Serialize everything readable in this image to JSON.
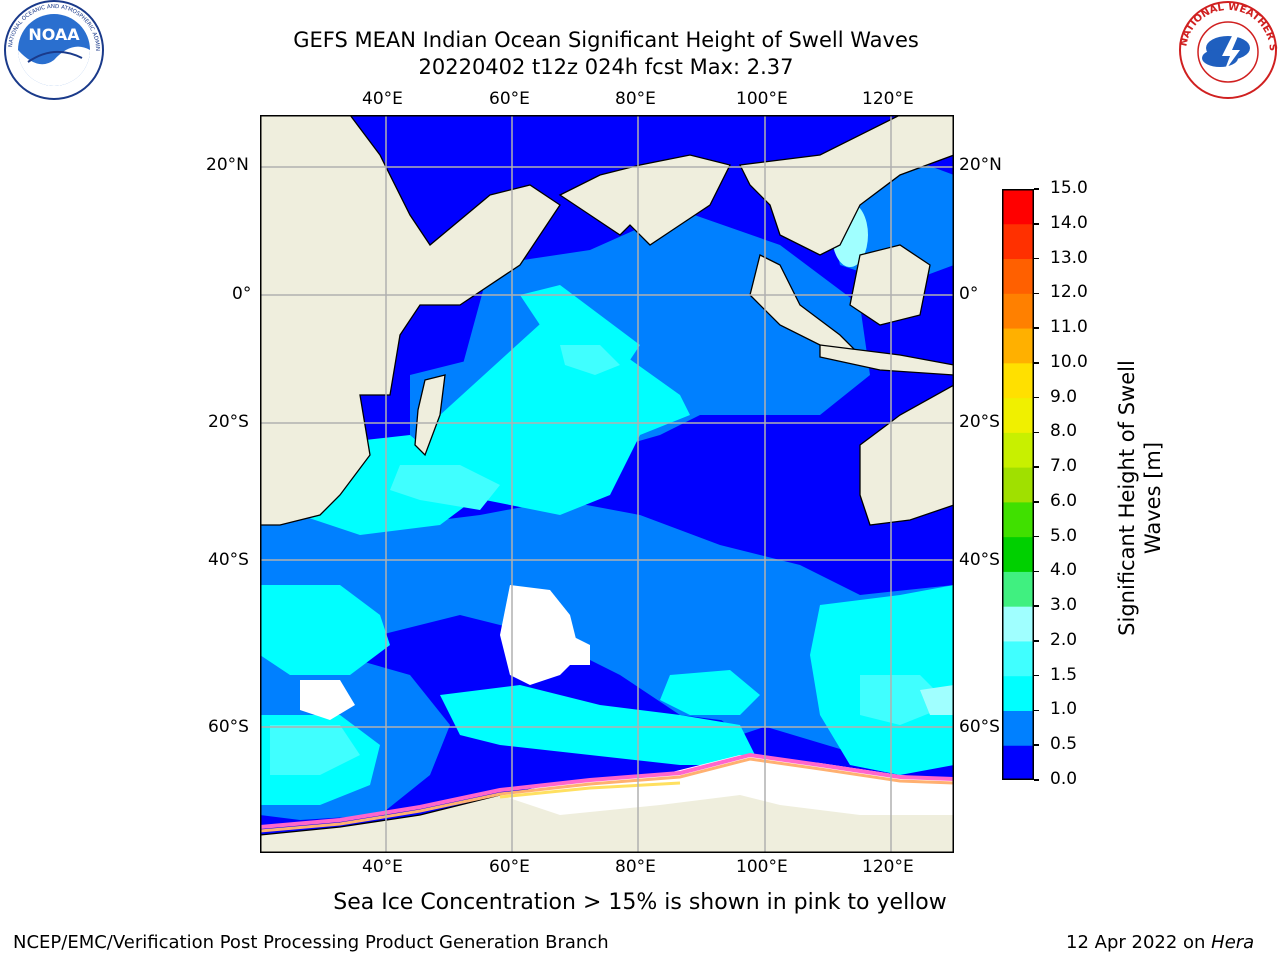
{
  "header": {
    "title_line1": "GEFS MEAN Indian Ocean Significant Height of Swell Waves",
    "title_line2": "20220402 t12z 024h fcst   Max: 2.37"
  },
  "logos": {
    "noaa_text": "NOAA",
    "noaa_ring_text": "NATIONAL OCEANIC AND ATMOSPHERIC ADMINISTRATION · U.S. DEPARTMENT OF COMMERCE",
    "nws_ring_text": "NATIONAL WEATHER SERVICE"
  },
  "map": {
    "lon_ticks": [
      "40°E",
      "60°E",
      "80°E",
      "100°E",
      "120°E"
    ],
    "lat_ticks": [
      "20°N",
      "0°",
      "20°S",
      "40°S",
      "60°S"
    ],
    "land_color": "#efeedd",
    "sea_ice_note": "Sea Ice Concentration > 15% is shown in pink to yellow"
  },
  "colorbar": {
    "label_line1": "Significant Height of Swell",
    "label_line2": "Waves [m]",
    "ticks": [
      "0.0",
      "0.5",
      "1.0",
      "1.5",
      "2.0",
      "3.0",
      "4.0",
      "5.0",
      "6.0",
      "7.0",
      "8.0",
      "9.0",
      "10.0",
      "11.0",
      "12.0",
      "13.0",
      "14.0",
      "15.0"
    ],
    "colors": [
      "#0000ff",
      "#0080ff",
      "#00ffff",
      "#40ffff",
      "#a0ffff",
      "#40f080",
      "#00d000",
      "#40e000",
      "#a0e000",
      "#c8f000",
      "#f0f000",
      "#ffe000",
      "#ffb000",
      "#ff8000",
      "#ff6000",
      "#ff3000",
      "#ff0000"
    ]
  },
  "footer": {
    "left": "NCEP/EMC/Verification Post Processing Product Generation Branch",
    "right_prefix": "12 Apr 2022 on ",
    "right_host": "Hera"
  }
}
